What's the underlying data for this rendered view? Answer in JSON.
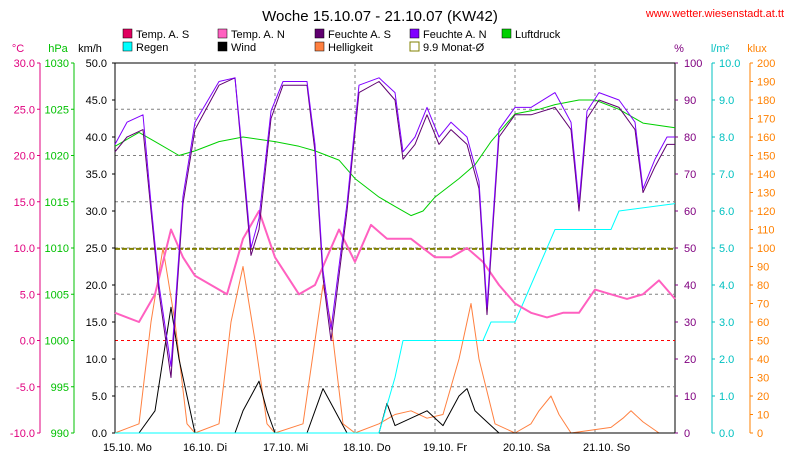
{
  "title": "Woche 15.10.07 - 21.10.07 (KW42)",
  "source_url": "www.wetter.wiesenstadt.at.tt",
  "axes_units": {
    "temp": "°C",
    "pressure": "hPa",
    "wind": "km/h",
    "humidity": "%",
    "rain": "l/m²",
    "light": "klux"
  },
  "axis_colors": {
    "temp": "#e0007f",
    "pressure": "#00c000",
    "wind": "#000000",
    "humidity": "#800080",
    "rain": "#00c0c0",
    "light": "#ff8000"
  },
  "legend": [
    {
      "label": "Temp. A. S",
      "color": "#e0005f",
      "type": "box"
    },
    {
      "label": "Temp. A. N",
      "color": "#ff60c0",
      "type": "box"
    },
    {
      "label": "Feuchte A. S",
      "color": "#600070",
      "type": "box"
    },
    {
      "label": "Feuchte A. N",
      "color": "#8000ff",
      "type": "box"
    },
    {
      "label": "Luftdruck",
      "color": "#00d000",
      "type": "box"
    },
    {
      "label": "Regen",
      "color": "#00ffff",
      "type": "box"
    },
    {
      "label": "Wind",
      "color": "#000000",
      "type": "box"
    },
    {
      "label": "Helligkeit",
      "color": "#ff8040",
      "type": "box"
    },
    {
      "label": "9.9 Monat-Ø",
      "color": "#808000",
      "type": "hollow"
    }
  ],
  "chart_data": {
    "type": "line",
    "x_labels": [
      "15.10. Mo",
      "16.10. Di",
      "17.10. Mi",
      "18.10. Do",
      "19.10. Fr",
      "20.10. Sa",
      "21.10. So"
    ],
    "x_domain_days": [
      0,
      7
    ],
    "y_axes": {
      "temp": {
        "min": -10,
        "max": 30,
        "ticks": [
          "30.0",
          "25.0",
          "20.0",
          "15.0",
          "10.0",
          "5.0",
          "0.0",
          "-5.0",
          "-10.0"
        ]
      },
      "pressure": {
        "min": 990,
        "max": 1030,
        "ticks": [
          "1030",
          "1025",
          "1020",
          "1015",
          "1010",
          "1005",
          "1000",
          "995",
          "990"
        ]
      },
      "wind": {
        "min": 0,
        "max": 50,
        "ticks": [
          "50.0",
          "45.0",
          "40.0",
          "35.0",
          "30.0",
          "25.0",
          "20.0",
          "15.0",
          "10.0",
          "5.0",
          "0.0"
        ]
      },
      "humidity": {
        "min": 0,
        "max": 100,
        "ticks": [
          "100",
          "90",
          "80",
          "70",
          "60",
          "50",
          "40",
          "30",
          "20",
          "10",
          "0"
        ]
      },
      "rain": {
        "min": 0,
        "max": 10,
        "ticks": [
          "10.0",
          "9.0",
          "8.0",
          "7.0",
          "6.0",
          "5.0",
          "4.0",
          "3.0",
          "2.0",
          "1.0",
          "0.0"
        ]
      },
      "light": {
        "min": 0,
        "max": 200,
        "ticks": [
          "200",
          "190",
          "180",
          "170",
          "160",
          "150",
          "140",
          "130",
          "120",
          "110",
          "100",
          "90",
          "80",
          "70",
          "60",
          "50",
          "40",
          "30",
          "20",
          "10",
          "0"
        ]
      }
    },
    "reference_line": {
      "label": "9.9 Monat-Ø",
      "value": 9.9,
      "axis": "temp"
    },
    "series": [
      {
        "name": "Luftdruck",
        "axis": "pressure",
        "color": "#00d000",
        "points": [
          [
            0,
            1021
          ],
          [
            0.3,
            1022.5
          ],
          [
            0.5,
            1021.5
          ],
          [
            0.8,
            1020
          ],
          [
            1.0,
            1020.5
          ],
          [
            1.3,
            1021.5
          ],
          [
            1.6,
            1022
          ],
          [
            2.0,
            1021.5
          ],
          [
            2.3,
            1021
          ],
          [
            2.5,
            1020.5
          ],
          [
            2.8,
            1019.5
          ],
          [
            3.0,
            1017.5
          ],
          [
            3.3,
            1015.5
          ],
          [
            3.5,
            1014.5
          ],
          [
            3.7,
            1013.5
          ],
          [
            3.85,
            1014
          ],
          [
            4.0,
            1015.5
          ],
          [
            4.3,
            1017.5
          ],
          [
            4.5,
            1019
          ],
          [
            4.7,
            1021.5
          ],
          [
            5.0,
            1024.5
          ],
          [
            5.3,
            1025
          ],
          [
            5.5,
            1025.5
          ],
          [
            5.8,
            1026
          ],
          [
            6.0,
            1026
          ],
          [
            6.3,
            1025
          ],
          [
            6.6,
            1023.5
          ],
          [
            7.0,
            1023
          ]
        ]
      },
      {
        "name": "Temp. A. S",
        "axis": "temp",
        "color": "#e0005f",
        "points": [
          [
            0,
            3
          ],
          [
            0.3,
            2
          ],
          [
            0.5,
            5
          ],
          [
            0.7,
            12
          ],
          [
            0.85,
            9
          ],
          [
            1.0,
            7
          ],
          [
            1.2,
            6
          ],
          [
            1.4,
            5
          ],
          [
            1.6,
            11
          ],
          [
            1.8,
            14
          ],
          [
            2.0,
            9
          ],
          [
            2.3,
            5
          ],
          [
            2.5,
            6
          ],
          [
            2.8,
            12
          ],
          [
            3.0,
            8.5
          ],
          [
            3.2,
            12.5
          ],
          [
            3.4,
            11
          ],
          [
            3.7,
            11
          ],
          [
            4.0,
            9
          ],
          [
            4.2,
            9
          ],
          [
            4.4,
            10
          ],
          [
            4.6,
            8.5
          ],
          [
            4.8,
            6
          ],
          [
            5.0,
            4
          ],
          [
            5.2,
            3
          ],
          [
            5.4,
            2.5
          ],
          [
            5.6,
            3
          ],
          [
            5.8,
            3
          ],
          [
            6.0,
            5.5
          ],
          [
            6.2,
            5
          ],
          [
            6.4,
            4.5
          ],
          [
            6.6,
            5
          ],
          [
            6.8,
            6.5
          ],
          [
            7.0,
            4.5
          ]
        ]
      },
      {
        "name": "Temp. A. N",
        "axis": "temp",
        "color": "#ff60c0",
        "points": [
          [
            0,
            3
          ],
          [
            0.3,
            2
          ],
          [
            0.5,
            5
          ],
          [
            0.7,
            12
          ],
          [
            0.85,
            9
          ],
          [
            1.0,
            7
          ],
          [
            1.2,
            6
          ],
          [
            1.4,
            5
          ],
          [
            1.6,
            11
          ],
          [
            1.8,
            14
          ],
          [
            2.0,
            9
          ],
          [
            2.3,
            5
          ],
          [
            2.5,
            6
          ],
          [
            2.8,
            12
          ],
          [
            3.0,
            8.5
          ],
          [
            3.2,
            12.5
          ],
          [
            3.4,
            11
          ],
          [
            3.7,
            11
          ],
          [
            4.0,
            9
          ],
          [
            4.2,
            9
          ],
          [
            4.4,
            10
          ],
          [
            4.6,
            8.5
          ],
          [
            4.8,
            6
          ],
          [
            5.0,
            4
          ],
          [
            5.2,
            3
          ],
          [
            5.4,
            2.5
          ],
          [
            5.6,
            3
          ],
          [
            5.8,
            3
          ],
          [
            6.0,
            5.5
          ],
          [
            6.2,
            5
          ],
          [
            6.4,
            4.5
          ],
          [
            6.6,
            5
          ],
          [
            6.8,
            6.5
          ],
          [
            7.0,
            4.5
          ]
        ]
      },
      {
        "name": "Feuchte A. S",
        "axis": "humidity",
        "color": "#600070",
        "points": [
          [
            0,
            76
          ],
          [
            0.15,
            80
          ],
          [
            0.35,
            82
          ],
          [
            0.45,
            60
          ],
          [
            0.55,
            38
          ],
          [
            0.7,
            15
          ],
          [
            0.85,
            62
          ],
          [
            1.0,
            82
          ],
          [
            1.3,
            94
          ],
          [
            1.5,
            96
          ],
          [
            1.6,
            72
          ],
          [
            1.7,
            48
          ],
          [
            1.8,
            55
          ],
          [
            1.95,
            85
          ],
          [
            2.1,
            94
          ],
          [
            2.4,
            94
          ],
          [
            2.5,
            76
          ],
          [
            2.6,
            42
          ],
          [
            2.7,
            25
          ],
          [
            2.9,
            60
          ],
          [
            3.05,
            92
          ],
          [
            3.3,
            95
          ],
          [
            3.5,
            90
          ],
          [
            3.6,
            74
          ],
          [
            3.75,
            78
          ],
          [
            3.9,
            86
          ],
          [
            4.05,
            78
          ],
          [
            4.2,
            82
          ],
          [
            4.4,
            78
          ],
          [
            4.55,
            66
          ],
          [
            4.65,
            32
          ],
          [
            4.8,
            80
          ],
          [
            5.0,
            86
          ],
          [
            5.2,
            86
          ],
          [
            5.5,
            88
          ],
          [
            5.7,
            82
          ],
          [
            5.8,
            60
          ],
          [
            5.9,
            85
          ],
          [
            6.05,
            90
          ],
          [
            6.3,
            88
          ],
          [
            6.5,
            82
          ],
          [
            6.6,
            65
          ],
          [
            6.75,
            72
          ],
          [
            6.9,
            78
          ],
          [
            7.0,
            78
          ]
        ]
      },
      {
        "name": "Feuchte A. N",
        "axis": "humidity",
        "color": "#8000ff",
        "points": [
          [
            0,
            78
          ],
          [
            0.15,
            84
          ],
          [
            0.35,
            86
          ],
          [
            0.45,
            62
          ],
          [
            0.55,
            40
          ],
          [
            0.7,
            18
          ],
          [
            0.85,
            64
          ],
          [
            1.0,
            84
          ],
          [
            1.3,
            95
          ],
          [
            1.5,
            96
          ],
          [
            1.6,
            74
          ],
          [
            1.7,
            50
          ],
          [
            1.8,
            58
          ],
          [
            1.95,
            87
          ],
          [
            2.1,
            95
          ],
          [
            2.4,
            95
          ],
          [
            2.5,
            78
          ],
          [
            2.6,
            44
          ],
          [
            2.7,
            28
          ],
          [
            2.9,
            62
          ],
          [
            3.05,
            94
          ],
          [
            3.3,
            96
          ],
          [
            3.5,
            92
          ],
          [
            3.6,
            76
          ],
          [
            3.75,
            80
          ],
          [
            3.9,
            88
          ],
          [
            4.05,
            80
          ],
          [
            4.2,
            84
          ],
          [
            4.4,
            80
          ],
          [
            4.55,
            68
          ],
          [
            4.65,
            34
          ],
          [
            4.8,
            82
          ],
          [
            5.0,
            88
          ],
          [
            5.2,
            88
          ],
          [
            5.5,
            92
          ],
          [
            5.7,
            84
          ],
          [
            5.8,
            62
          ],
          [
            5.9,
            87
          ],
          [
            6.05,
            92
          ],
          [
            6.3,
            90
          ],
          [
            6.5,
            84
          ],
          [
            6.6,
            66
          ],
          [
            6.75,
            74
          ],
          [
            6.9,
            80
          ],
          [
            7.0,
            80
          ]
        ]
      },
      {
        "name": "Regen",
        "axis": "rain",
        "color": "#00ffff",
        "points": [
          [
            0,
            0
          ],
          [
            3.3,
            0
          ],
          [
            3.5,
            1.5
          ],
          [
            3.6,
            2.5
          ],
          [
            4.0,
            2.5
          ],
          [
            4.6,
            2.5
          ],
          [
            4.7,
            3.0
          ],
          [
            5.0,
            3.0
          ],
          [
            5.2,
            4.0
          ],
          [
            5.3,
            4.5
          ],
          [
            5.5,
            5.5
          ],
          [
            6.2,
            5.5
          ],
          [
            6.3,
            6
          ],
          [
            7.0,
            6.2
          ]
        ]
      },
      {
        "name": "Wind",
        "axis": "wind",
        "color": "#000000",
        "points": [
          [
            0,
            0
          ],
          [
            0.3,
            0
          ],
          [
            0.5,
            3
          ],
          [
            0.6,
            10
          ],
          [
            0.7,
            17
          ],
          [
            0.8,
            10
          ],
          [
            0.9,
            5
          ],
          [
            1.0,
            0
          ],
          [
            1.5,
            0
          ],
          [
            1.6,
            3
          ],
          [
            1.7,
            5
          ],
          [
            1.8,
            7
          ],
          [
            1.9,
            3
          ],
          [
            2.0,
            0
          ],
          [
            2.4,
            0
          ],
          [
            2.5,
            3
          ],
          [
            2.6,
            6
          ],
          [
            2.7,
            4
          ],
          [
            2.8,
            2
          ],
          [
            2.9,
            0
          ],
          [
            3.3,
            0
          ],
          [
            3.4,
            4
          ],
          [
            3.5,
            1
          ],
          [
            3.7,
            2
          ],
          [
            3.9,
            3
          ],
          [
            4.1,
            1
          ],
          [
            4.3,
            5
          ],
          [
            4.4,
            6
          ],
          [
            4.5,
            3
          ],
          [
            4.6,
            2
          ],
          [
            4.8,
            0
          ],
          [
            7.0,
            0
          ]
        ]
      },
      {
        "name": "Helligkeit",
        "axis": "light",
        "color": "#ff8040",
        "points": [
          [
            0,
            0
          ],
          [
            0.3,
            5
          ],
          [
            0.45,
            60
          ],
          [
            0.6,
            100
          ],
          [
            0.75,
            60
          ],
          [
            0.9,
            5
          ],
          [
            1.0,
            0
          ],
          [
            1.3,
            5
          ],
          [
            1.45,
            60
          ],
          [
            1.6,
            90
          ],
          [
            1.75,
            50
          ],
          [
            1.9,
            5
          ],
          [
            2.0,
            0
          ],
          [
            2.35,
            5
          ],
          [
            2.5,
            50
          ],
          [
            2.6,
            80
          ],
          [
            2.7,
            60
          ],
          [
            2.85,
            5
          ],
          [
            3.0,
            0
          ],
          [
            3.3,
            5
          ],
          [
            3.5,
            10
          ],
          [
            3.7,
            12
          ],
          [
            3.9,
            8
          ],
          [
            4.1,
            10
          ],
          [
            4.3,
            40
          ],
          [
            4.45,
            70
          ],
          [
            4.55,
            40
          ],
          [
            4.75,
            5
          ],
          [
            5.0,
            0
          ],
          [
            5.2,
            5
          ],
          [
            5.3,
            12
          ],
          [
            5.45,
            20
          ],
          [
            5.55,
            10
          ],
          [
            5.7,
            0
          ],
          [
            6.2,
            3
          ],
          [
            6.35,
            8
          ],
          [
            6.45,
            12
          ],
          [
            6.6,
            6
          ],
          [
            6.8,
            0
          ],
          [
            7.0,
            0
          ]
        ]
      }
    ]
  }
}
